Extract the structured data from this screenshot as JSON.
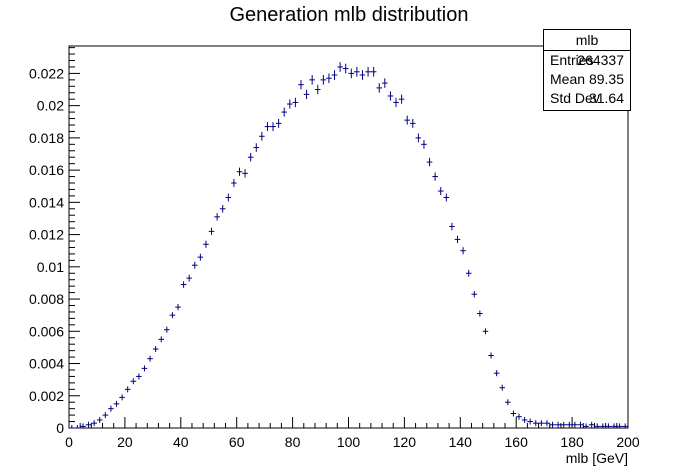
{
  "title": "Generation mlb distribution",
  "stats": {
    "name": "mlb",
    "rows": [
      {
        "label": "Entries",
        "value": "264337"
      },
      {
        "label": "Mean",
        "value": "89.35"
      },
      {
        "label": "Std Dev",
        "value": "31.64"
      }
    ]
  },
  "colors": {
    "marker": "#000080",
    "axis": "#000000"
  },
  "chart_data": {
    "type": "scatter",
    "style": "histogram error-cross markers",
    "title": "Generation mlb distribution",
    "xlabel": "mlb [GeV]",
    "ylabel": "",
    "xlim": [
      0,
      200
    ],
    "ylim": [
      0,
      0.0237
    ],
    "bin_width": 2,
    "x_ticks": [
      0,
      20,
      40,
      60,
      80,
      100,
      120,
      140,
      160,
      180,
      200
    ],
    "x_tick_labels": [
      "0",
      "20",
      "40",
      "60",
      "80",
      "100",
      "120",
      "140",
      "160",
      "180",
      "200"
    ],
    "y_ticks": [
      0,
      0.002,
      0.004,
      0.006,
      0.008,
      0.01,
      0.012,
      0.014,
      0.016,
      0.018,
      0.02,
      0.022
    ],
    "y_tick_labels": [
      "0",
      "0.002",
      "0.004",
      "0.006",
      "0.008",
      "0.01",
      "0.012",
      "0.014",
      "0.016",
      "0.018",
      "0.02",
      "0.022"
    ],
    "grid": false,
    "x": [
      1,
      3,
      5,
      7,
      9,
      11,
      13,
      15,
      17,
      19,
      21,
      23,
      25,
      27,
      29,
      31,
      33,
      35,
      37,
      39,
      41,
      43,
      45,
      47,
      49,
      51,
      53,
      55,
      57,
      59,
      61,
      63,
      65,
      67,
      69,
      71,
      73,
      75,
      77,
      79,
      81,
      83,
      85,
      87,
      89,
      91,
      93,
      95,
      97,
      99,
      101,
      103,
      105,
      107,
      109,
      111,
      113,
      115,
      117,
      119,
      121,
      123,
      125,
      127,
      129,
      131,
      133,
      135,
      137,
      139,
      141,
      143,
      145,
      147,
      149,
      151,
      153,
      155,
      157,
      159,
      161,
      163,
      165,
      167,
      169,
      171,
      173,
      175,
      177,
      179,
      181,
      183,
      185,
      187,
      189,
      191,
      193,
      195,
      197,
      199
    ],
    "y": [
      0.0,
      0.0,
      0.0001,
      0.0002,
      0.0003,
      0.0005,
      0.0008,
      0.0012,
      0.0015,
      0.0019,
      0.0024,
      0.0029,
      0.0032,
      0.0037,
      0.0043,
      0.0049,
      0.0055,
      0.0061,
      0.007,
      0.0075,
      0.0089,
      0.0093,
      0.0101,
      0.0106,
      0.0114,
      0.0122,
      0.0131,
      0.0136,
      0.0143,
      0.0152,
      0.0159,
      0.0158,
      0.0168,
      0.0174,
      0.0181,
      0.0187,
      0.0187,
      0.0189,
      0.0196,
      0.0201,
      0.0202,
      0.0213,
      0.0207,
      0.0216,
      0.021,
      0.0216,
      0.0217,
      0.0219,
      0.0224,
      0.0223,
      0.022,
      0.0221,
      0.0219,
      0.0221,
      0.0221,
      0.0211,
      0.0214,
      0.0206,
      0.0202,
      0.0204,
      0.0191,
      0.0189,
      0.018,
      0.0176,
      0.0165,
      0.0156,
      0.0147,
      0.0143,
      0.0125,
      0.0117,
      0.011,
      0.0096,
      0.0083,
      0.0071,
      0.006,
      0.0045,
      0.0034,
      0.0025,
      0.0016,
      0.0009,
      0.0007,
      0.0005,
      0.0004,
      0.0003,
      0.0003,
      0.0003,
      0.0002,
      0.0002,
      0.0002,
      0.0002,
      0.0002,
      0.0002,
      0.0001,
      0.0002,
      0.0001,
      0.0001,
      0.0001,
      0.0001,
      0.0001,
      0.0001
    ]
  }
}
